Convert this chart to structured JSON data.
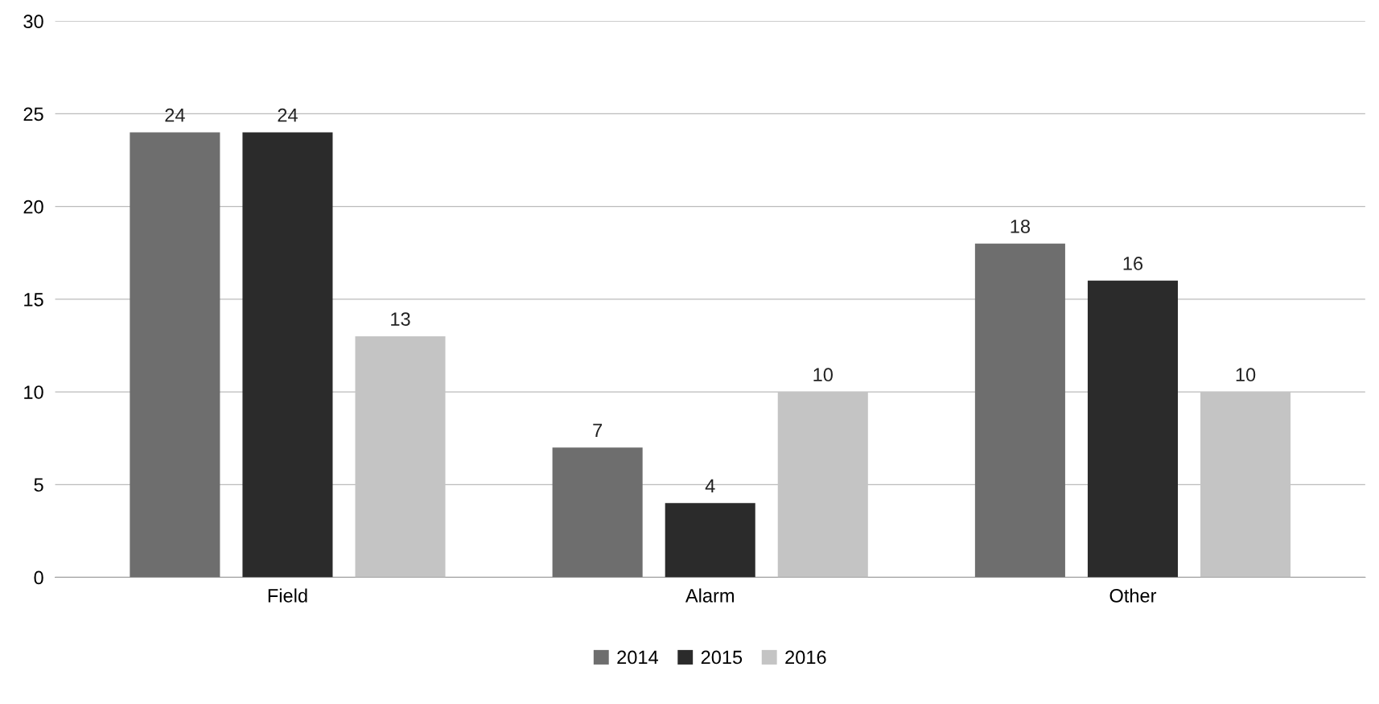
{
  "chart_data": {
    "type": "bar",
    "categories": [
      "Field",
      "Alarm",
      "Other"
    ],
    "series": [
      {
        "name": "2014",
        "color": "#6e6e6e",
        "values": [
          24,
          7,
          18
        ]
      },
      {
        "name": "2015",
        "color": "#2b2b2b",
        "values": [
          24,
          4,
          16
        ]
      },
      {
        "name": "2016",
        "color": "#c4c4c4",
        "values": [
          13,
          10,
          10
        ]
      }
    ],
    "ylim": [
      0,
      30
    ],
    "yticks": [
      0,
      5,
      10,
      15,
      20,
      25,
      30
    ],
    "grid": "y",
    "legend": "bottom",
    "data_labels": true
  }
}
